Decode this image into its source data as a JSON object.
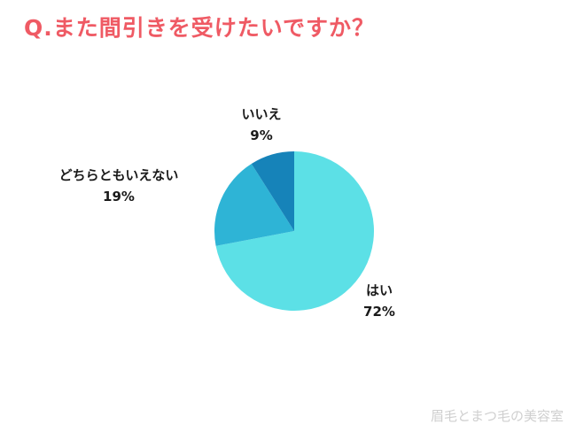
{
  "title": "Q.また間引きを受けたいですか？",
  "watermark": "眉毛とまつ毛の美容室",
  "colors": {
    "title": "#ef5a64",
    "watermark": "#cfcfcf"
  },
  "chart_data": {
    "type": "pie",
    "title": "Q.また間引きを受けたいですか？",
    "slices": [
      {
        "label": "はい",
        "value": 72,
        "display": "72%",
        "color": "#5ce0e6"
      },
      {
        "label": "どちらともいえない",
        "value": 19,
        "display": "19%",
        "color": "#2eb4d6"
      },
      {
        "label": "いいえ",
        "value": 9,
        "display": "9%",
        "color": "#1683b9"
      }
    ],
    "start": "12 o'clock",
    "direction": "clockwise"
  }
}
